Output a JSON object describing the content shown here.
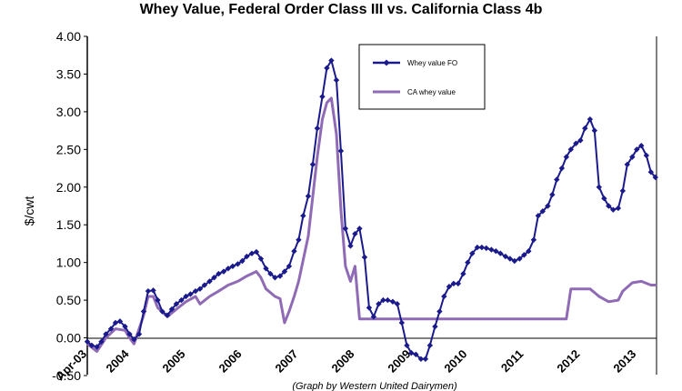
{
  "chart_data": {
    "type": "line",
    "title": "Whey Value, Federal Order Class III vs. California Class 4b",
    "ylabel": "$/cwt",
    "xlabel": "",
    "ylim": [
      -0.5,
      4.0
    ],
    "yticks": [
      "4.00",
      "3.50",
      "3.00",
      "2.50",
      "2.00",
      "1.50",
      "1.00",
      "0.50",
      "0.00",
      "-0.50"
    ],
    "xlim": [
      2003.25,
      2013.35
    ],
    "xticks": [
      {
        "label": "Apr-03",
        "x": 2003.25
      },
      {
        "label": "2004",
        "x": 2004.0
      },
      {
        "label": "2005",
        "x": 2005.0
      },
      {
        "label": "2006",
        "x": 2006.0
      },
      {
        "label": "2007",
        "x": 2007.0
      },
      {
        "label": "2008",
        "x": 2008.0
      },
      {
        "label": "2009",
        "x": 2009.0
      },
      {
        "label": "2010",
        "x": 2010.0
      },
      {
        "label": "2011",
        "x": 2011.0
      },
      {
        "label": "2012",
        "x": 2012.0
      },
      {
        "label": "2013",
        "x": 2013.0
      }
    ],
    "legend_position": "top-right",
    "grid": false,
    "annotation": "(Graph by Western United Dairymen)",
    "series": [
      {
        "name": "Whey value FO",
        "color": "#1a1a8c",
        "marker": "diamond",
        "points": [
          [
            2003.25,
            -0.05
          ],
          [
            2003.33,
            -0.1
          ],
          [
            2003.42,
            -0.12
          ],
          [
            2003.5,
            -0.05
          ],
          [
            2003.58,
            0.05
          ],
          [
            2003.67,
            0.12
          ],
          [
            2003.75,
            0.2
          ],
          [
            2003.83,
            0.22
          ],
          [
            2003.92,
            0.15
          ],
          [
            2004.0,
            0.05
          ],
          [
            2004.08,
            -0.02
          ],
          [
            2004.17,
            0.05
          ],
          [
            2004.25,
            0.35
          ],
          [
            2004.33,
            0.62
          ],
          [
            2004.42,
            0.63
          ],
          [
            2004.5,
            0.5
          ],
          [
            2004.58,
            0.35
          ],
          [
            2004.67,
            0.3
          ],
          [
            2004.75,
            0.38
          ],
          [
            2004.83,
            0.45
          ],
          [
            2004.92,
            0.5
          ],
          [
            2005.0,
            0.55
          ],
          [
            2005.08,
            0.58
          ],
          [
            2005.17,
            0.62
          ],
          [
            2005.25,
            0.65
          ],
          [
            2005.33,
            0.7
          ],
          [
            2005.42,
            0.75
          ],
          [
            2005.5,
            0.8
          ],
          [
            2005.58,
            0.85
          ],
          [
            2005.67,
            0.88
          ],
          [
            2005.75,
            0.92
          ],
          [
            2005.83,
            0.95
          ],
          [
            2005.92,
            0.98
          ],
          [
            2006.0,
            1.02
          ],
          [
            2006.08,
            1.08
          ],
          [
            2006.17,
            1.12
          ],
          [
            2006.25,
            1.14
          ],
          [
            2006.33,
            1.05
          ],
          [
            2006.42,
            0.92
          ],
          [
            2006.5,
            0.85
          ],
          [
            2006.58,
            0.8
          ],
          [
            2006.67,
            0.82
          ],
          [
            2006.75,
            0.88
          ],
          [
            2006.83,
            0.95
          ],
          [
            2006.92,
            1.15
          ],
          [
            2007.0,
            1.3
          ],
          [
            2007.08,
            1.62
          ],
          [
            2007.17,
            1.88
          ],
          [
            2007.25,
            2.3
          ],
          [
            2007.33,
            2.78
          ],
          [
            2007.42,
            3.2
          ],
          [
            2007.5,
            3.58
          ],
          [
            2007.58,
            3.68
          ],
          [
            2007.67,
            3.42
          ],
          [
            2007.75,
            2.48
          ],
          [
            2007.83,
            1.45
          ],
          [
            2007.92,
            1.22
          ],
          [
            2008.0,
            1.38
          ],
          [
            2008.08,
            1.45
          ],
          [
            2008.17,
            1.07
          ],
          [
            2008.25,
            0.4
          ],
          [
            2008.33,
            0.28
          ],
          [
            2008.42,
            0.45
          ],
          [
            2008.5,
            0.5
          ],
          [
            2008.58,
            0.5
          ],
          [
            2008.67,
            0.48
          ],
          [
            2008.75,
            0.45
          ],
          [
            2008.83,
            0.2
          ],
          [
            2008.92,
            -0.1
          ],
          [
            2009.0,
            -0.2
          ],
          [
            2009.08,
            -0.22
          ],
          [
            2009.17,
            -0.28
          ],
          [
            2009.25,
            -0.28
          ],
          [
            2009.33,
            -0.1
          ],
          [
            2009.42,
            0.15
          ],
          [
            2009.5,
            0.35
          ],
          [
            2009.58,
            0.55
          ],
          [
            2009.67,
            0.68
          ],
          [
            2009.75,
            0.72
          ],
          [
            2009.83,
            0.72
          ],
          [
            2009.92,
            0.85
          ],
          [
            2010.0,
            1.0
          ],
          [
            2010.08,
            1.12
          ],
          [
            2010.17,
            1.2
          ],
          [
            2010.25,
            1.2
          ],
          [
            2010.33,
            1.19
          ],
          [
            2010.42,
            1.17
          ],
          [
            2010.5,
            1.15
          ],
          [
            2010.58,
            1.12
          ],
          [
            2010.67,
            1.08
          ],
          [
            2010.75,
            1.05
          ],
          [
            2010.83,
            1.02
          ],
          [
            2010.92,
            1.05
          ],
          [
            2011.0,
            1.1
          ],
          [
            2011.08,
            1.15
          ],
          [
            2011.17,
            1.3
          ],
          [
            2011.25,
            1.62
          ],
          [
            2011.33,
            1.68
          ],
          [
            2011.42,
            1.75
          ],
          [
            2011.5,
            1.9
          ],
          [
            2011.58,
            2.1
          ],
          [
            2011.67,
            2.25
          ],
          [
            2011.75,
            2.4
          ],
          [
            2011.83,
            2.5
          ],
          [
            2011.92,
            2.58
          ],
          [
            2012.0,
            2.62
          ],
          [
            2012.08,
            2.78
          ],
          [
            2012.17,
            2.9
          ],
          [
            2012.25,
            2.75
          ],
          [
            2012.33,
            2.0
          ],
          [
            2012.42,
            1.85
          ],
          [
            2012.5,
            1.75
          ],
          [
            2012.58,
            1.7
          ],
          [
            2012.67,
            1.72
          ],
          [
            2012.75,
            1.95
          ],
          [
            2012.83,
            2.3
          ],
          [
            2012.92,
            2.4
          ],
          [
            2013.0,
            2.5
          ],
          [
            2013.08,
            2.55
          ],
          [
            2013.17,
            2.42
          ],
          [
            2013.25,
            2.2
          ],
          [
            2013.33,
            2.13
          ]
        ]
      },
      {
        "name": "CA whey value",
        "color": "#8f6ab5",
        "marker": "none",
        "points": [
          [
            2003.25,
            -0.08
          ],
          [
            2003.42,
            -0.18
          ],
          [
            2003.58,
            0.0
          ],
          [
            2003.75,
            0.12
          ],
          [
            2003.92,
            0.1
          ],
          [
            2004.0,
            0.0
          ],
          [
            2004.08,
            -0.08
          ],
          [
            2004.25,
            0.3
          ],
          [
            2004.33,
            0.55
          ],
          [
            2004.42,
            0.55
          ],
          [
            2004.5,
            0.4
          ],
          [
            2004.67,
            0.28
          ],
          [
            2004.83,
            0.38
          ],
          [
            2005.0,
            0.48
          ],
          [
            2005.17,
            0.55
          ],
          [
            2005.25,
            0.45
          ],
          [
            2005.42,
            0.55
          ],
          [
            2005.58,
            0.62
          ],
          [
            2005.75,
            0.7
          ],
          [
            2005.92,
            0.75
          ],
          [
            2006.08,
            0.82
          ],
          [
            2006.25,
            0.88
          ],
          [
            2006.33,
            0.8
          ],
          [
            2006.42,
            0.65
          ],
          [
            2006.58,
            0.55
          ],
          [
            2006.67,
            0.52
          ],
          [
            2006.75,
            0.2
          ],
          [
            2006.83,
            0.35
          ],
          [
            2006.92,
            0.55
          ],
          [
            2007.0,
            0.75
          ],
          [
            2007.17,
            1.35
          ],
          [
            2007.33,
            2.4
          ],
          [
            2007.42,
            2.9
          ],
          [
            2007.5,
            3.12
          ],
          [
            2007.58,
            3.18
          ],
          [
            2007.67,
            2.7
          ],
          [
            2007.75,
            1.7
          ],
          [
            2007.83,
            0.95
          ],
          [
            2007.92,
            0.75
          ],
          [
            2008.0,
            0.95
          ],
          [
            2008.08,
            0.25
          ],
          [
            2009.0,
            0.25
          ],
          [
            2010.0,
            0.25
          ],
          [
            2011.0,
            0.25
          ],
          [
            2011.75,
            0.25
          ],
          [
            2011.83,
            0.65
          ],
          [
            2012.0,
            0.65
          ],
          [
            2012.17,
            0.65
          ],
          [
            2012.33,
            0.55
          ],
          [
            2012.5,
            0.48
          ],
          [
            2012.67,
            0.5
          ],
          [
            2012.75,
            0.62
          ],
          [
            2012.92,
            0.73
          ],
          [
            2013.08,
            0.75
          ],
          [
            2013.25,
            0.7
          ],
          [
            2013.35,
            0.7
          ]
        ]
      }
    ]
  }
}
